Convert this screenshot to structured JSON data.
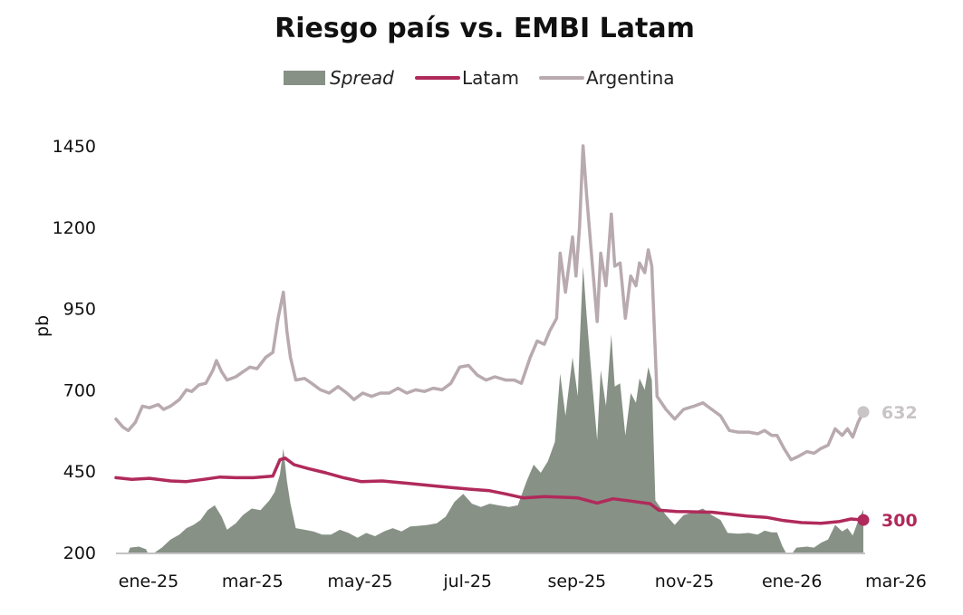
{
  "chart_data": {
    "type": "line",
    "title": "Riesgo país vs. EMBI Latam",
    "ylabel": "pb",
    "xlabel": "",
    "ylim": [
      200,
      1450
    ],
    "yticks": [
      "200",
      "450",
      "700",
      "950",
      "1200",
      "1450"
    ],
    "x_tick_labels": [
      "ene-25",
      "mar-25",
      "may-25",
      "jul-25",
      "sep-25",
      "nov-25",
      "ene-26",
      "mar-26"
    ],
    "x_start": "2025-01-01",
    "x_end": "2026-03-01",
    "legend_position": "top-center",
    "grid": false,
    "legend": [
      {
        "name": "Spread",
        "style": "area",
        "italic": true
      },
      {
        "name": "Latam",
        "style": "line"
      },
      {
        "name": "Argentina",
        "style": "line"
      }
    ],
    "series": [
      {
        "name": "Argentina",
        "type": "line",
        "color": "#b8aaaf",
        "points": [
          [
            "2025-01-01",
            610
          ],
          [
            "2025-01-05",
            585
          ],
          [
            "2025-01-08",
            575
          ],
          [
            "2025-01-12",
            600
          ],
          [
            "2025-01-16",
            650
          ],
          [
            "2025-01-20",
            645
          ],
          [
            "2025-01-25",
            655
          ],
          [
            "2025-01-28",
            640
          ],
          [
            "2025-02-01",
            650
          ],
          [
            "2025-02-06",
            670
          ],
          [
            "2025-02-10",
            700
          ],
          [
            "2025-02-13",
            695
          ],
          [
            "2025-02-17",
            715
          ],
          [
            "2025-02-21",
            720
          ],
          [
            "2025-02-25",
            760
          ],
          [
            "2025-02-27",
            790
          ],
          [
            "2025-03-02",
            755
          ],
          [
            "2025-03-05",
            730
          ],
          [
            "2025-03-10",
            740
          ],
          [
            "2025-03-14",
            755
          ],
          [
            "2025-03-18",
            770
          ],
          [
            "2025-03-22",
            765
          ],
          [
            "2025-03-27",
            800
          ],
          [
            "2025-03-31",
            815
          ],
          [
            "2025-04-03",
            920
          ],
          [
            "2025-04-06",
            1000
          ],
          [
            "2025-04-08",
            880
          ],
          [
            "2025-04-10",
            800
          ],
          [
            "2025-04-13",
            730
          ],
          [
            "2025-04-18",
            735
          ],
          [
            "2025-04-22",
            720
          ],
          [
            "2025-04-27",
            700
          ],
          [
            "2025-05-02",
            690
          ],
          [
            "2025-05-07",
            710
          ],
          [
            "2025-05-12",
            690
          ],
          [
            "2025-05-16",
            670
          ],
          [
            "2025-05-21",
            690
          ],
          [
            "2025-05-26",
            680
          ],
          [
            "2025-05-31",
            690
          ],
          [
            "2025-06-05",
            690
          ],
          [
            "2025-06-10",
            705
          ],
          [
            "2025-06-15",
            690
          ],
          [
            "2025-06-20",
            700
          ],
          [
            "2025-06-25",
            695
          ],
          [
            "2025-06-30",
            705
          ],
          [
            "2025-07-05",
            700
          ],
          [
            "2025-07-10",
            720
          ],
          [
            "2025-07-15",
            770
          ],
          [
            "2025-07-20",
            775
          ],
          [
            "2025-07-25",
            745
          ],
          [
            "2025-07-30",
            730
          ],
          [
            "2025-08-04",
            740
          ],
          [
            "2025-08-10",
            730
          ],
          [
            "2025-08-15",
            730
          ],
          [
            "2025-08-19",
            720
          ],
          [
            "2025-08-24",
            800
          ],
          [
            "2025-08-28",
            850
          ],
          [
            "2025-09-01",
            840
          ],
          [
            "2025-09-04",
            880
          ],
          [
            "2025-09-08",
            920
          ],
          [
            "2025-09-10",
            1120
          ],
          [
            "2025-09-13",
            1000
          ],
          [
            "2025-09-17",
            1170
          ],
          [
            "2025-09-19",
            1050
          ],
          [
            "2025-09-21",
            1200
          ],
          [
            "2025-09-23",
            1450
          ],
          [
            "2025-09-25",
            1300
          ],
          [
            "2025-09-28",
            1100
          ],
          [
            "2025-10-01",
            910
          ],
          [
            "2025-10-03",
            1120
          ],
          [
            "2025-10-06",
            1020
          ],
          [
            "2025-10-09",
            1240
          ],
          [
            "2025-10-11",
            1080
          ],
          [
            "2025-10-14",
            1090
          ],
          [
            "2025-10-17",
            920
          ],
          [
            "2025-10-20",
            1050
          ],
          [
            "2025-10-23",
            1020
          ],
          [
            "2025-10-25",
            1090
          ],
          [
            "2025-10-28",
            1060
          ],
          [
            "2025-10-30",
            1130
          ],
          [
            "2025-11-01",
            1080
          ],
          [
            "2025-11-04",
            680
          ],
          [
            "2025-11-09",
            640
          ],
          [
            "2025-11-14",
            610
          ],
          [
            "2025-11-19",
            640
          ],
          [
            "2025-11-25",
            650
          ],
          [
            "2025-11-30",
            660
          ],
          [
            "2025-12-05",
            640
          ],
          [
            "2025-12-10",
            620
          ],
          [
            "2025-12-15",
            575
          ],
          [
            "2025-12-20",
            570
          ],
          [
            "2025-12-26",
            570
          ],
          [
            "2025-12-31",
            565
          ],
          [
            "2026-01-04",
            575
          ],
          [
            "2026-01-08",
            560
          ],
          [
            "2026-01-11",
            560
          ],
          [
            "2026-01-15",
            520
          ],
          [
            "2026-01-19",
            485
          ],
          [
            "2026-01-23",
            495
          ],
          [
            "2026-01-28",
            510
          ],
          [
            "2026-02-01",
            505
          ],
          [
            "2026-02-05",
            520
          ],
          [
            "2026-02-09",
            530
          ],
          [
            "2026-02-13",
            580
          ],
          [
            "2026-02-17",
            560
          ],
          [
            "2026-02-20",
            580
          ],
          [
            "2026-02-23",
            555
          ],
          [
            "2026-02-26",
            600
          ],
          [
            "2026-03-01",
            632
          ]
        ]
      },
      {
        "name": "Latam",
        "type": "line",
        "color": "#b02a5b",
        "points": [
          [
            "2025-01-01",
            430
          ],
          [
            "2025-01-10",
            425
          ],
          [
            "2025-01-20",
            428
          ],
          [
            "2025-02-01",
            420
          ],
          [
            "2025-02-10",
            418
          ],
          [
            "2025-02-20",
            425
          ],
          [
            "2025-03-01",
            432
          ],
          [
            "2025-03-10",
            430
          ],
          [
            "2025-03-20",
            430
          ],
          [
            "2025-03-31",
            435
          ],
          [
            "2025-04-04",
            485
          ],
          [
            "2025-04-07",
            490
          ],
          [
            "2025-04-12",
            470
          ],
          [
            "2025-04-20",
            458
          ],
          [
            "2025-04-30",
            445
          ],
          [
            "2025-05-10",
            430
          ],
          [
            "2025-05-20",
            418
          ],
          [
            "2025-06-01",
            420
          ],
          [
            "2025-06-15",
            413
          ],
          [
            "2025-06-30",
            405
          ],
          [
            "2025-07-10",
            400
          ],
          [
            "2025-07-20",
            395
          ],
          [
            "2025-08-01",
            390
          ],
          [
            "2025-08-10",
            380
          ],
          [
            "2025-08-20",
            368
          ],
          [
            "2025-09-01",
            372
          ],
          [
            "2025-09-10",
            370
          ],
          [
            "2025-09-20",
            368
          ],
          [
            "2025-10-01",
            352
          ],
          [
            "2025-10-10",
            365
          ],
          [
            "2025-10-20",
            358
          ],
          [
            "2025-10-31",
            350
          ],
          [
            "2025-11-05",
            330
          ],
          [
            "2025-11-15",
            326
          ],
          [
            "2025-11-25",
            325
          ],
          [
            "2025-12-05",
            324
          ],
          [
            "2025-12-15",
            318
          ],
          [
            "2025-12-25",
            312
          ],
          [
            "2026-01-05",
            308
          ],
          [
            "2026-01-15",
            298
          ],
          [
            "2026-01-25",
            292
          ],
          [
            "2026-02-05",
            290
          ],
          [
            "2026-02-15",
            295
          ],
          [
            "2026-02-22",
            303
          ],
          [
            "2026-03-01",
            300
          ]
        ]
      },
      {
        "name": "Spread",
        "type": "area",
        "color": "#879186",
        "points": [
          [
            "2025-01-01",
            200
          ],
          [
            "2025-01-08",
            200
          ],
          [
            "2025-01-09",
            215
          ],
          [
            "2025-01-14",
            218
          ],
          [
            "2025-01-18",
            210
          ],
          [
            "2025-01-19",
            200
          ],
          [
            "2025-01-23",
            200
          ],
          [
            "2025-01-27",
            215
          ],
          [
            "2025-02-01",
            240
          ],
          [
            "2025-02-06",
            255
          ],
          [
            "2025-02-10",
            275
          ],
          [
            "2025-02-14",
            285
          ],
          [
            "2025-02-18",
            300
          ],
          [
            "2025-02-22",
            330
          ],
          [
            "2025-02-26",
            345
          ],
          [
            "2025-03-02",
            310
          ],
          [
            "2025-03-05",
            270
          ],
          [
            "2025-03-10",
            290
          ],
          [
            "2025-03-14",
            315
          ],
          [
            "2025-03-19",
            335
          ],
          [
            "2025-03-24",
            330
          ],
          [
            "2025-03-29",
            360
          ],
          [
            "2025-04-01",
            385
          ],
          [
            "2025-04-04",
            440
          ],
          [
            "2025-04-06",
            520
          ],
          [
            "2025-04-08",
            420
          ],
          [
            "2025-04-10",
            350
          ],
          [
            "2025-04-13",
            275
          ],
          [
            "2025-04-18",
            270
          ],
          [
            "2025-04-23",
            265
          ],
          [
            "2025-04-28",
            255
          ],
          [
            "2025-05-03",
            255
          ],
          [
            "2025-05-08",
            270
          ],
          [
            "2025-05-13",
            260
          ],
          [
            "2025-05-18",
            245
          ],
          [
            "2025-05-23",
            260
          ],
          [
            "2025-05-28",
            250
          ],
          [
            "2025-06-02",
            265
          ],
          [
            "2025-06-07",
            275
          ],
          [
            "2025-06-12",
            265
          ],
          [
            "2025-06-17",
            280
          ],
          [
            "2025-06-22",
            282
          ],
          [
            "2025-06-27",
            285
          ],
          [
            "2025-07-02",
            290
          ],
          [
            "2025-07-07",
            310
          ],
          [
            "2025-07-12",
            355
          ],
          [
            "2025-07-17",
            380
          ],
          [
            "2025-07-22",
            350
          ],
          [
            "2025-07-27",
            340
          ],
          [
            "2025-08-01",
            350
          ],
          [
            "2025-08-06",
            345
          ],
          [
            "2025-08-12",
            340
          ],
          [
            "2025-08-17",
            345
          ],
          [
            "2025-08-22",
            420
          ],
          [
            "2025-08-26",
            470
          ],
          [
            "2025-08-30",
            445
          ],
          [
            "2025-09-03",
            480
          ],
          [
            "2025-09-07",
            540
          ],
          [
            "2025-09-10",
            750
          ],
          [
            "2025-09-13",
            620
          ],
          [
            "2025-09-17",
            800
          ],
          [
            "2025-09-20",
            680
          ],
          [
            "2025-09-21",
            830
          ],
          [
            "2025-09-23",
            1080
          ],
          [
            "2025-09-25",
            930
          ],
          [
            "2025-09-28",
            730
          ],
          [
            "2025-10-01",
            545
          ],
          [
            "2025-10-03",
            760
          ],
          [
            "2025-10-06",
            650
          ],
          [
            "2025-10-09",
            870
          ],
          [
            "2025-10-11",
            710
          ],
          [
            "2025-10-14",
            720
          ],
          [
            "2025-10-17",
            560
          ],
          [
            "2025-10-20",
            690
          ],
          [
            "2025-10-23",
            660
          ],
          [
            "2025-10-25",
            735
          ],
          [
            "2025-10-28",
            700
          ],
          [
            "2025-10-30",
            770
          ],
          [
            "2025-11-01",
            730
          ],
          [
            "2025-11-03",
            360
          ],
          [
            "2025-11-09",
            315
          ],
          [
            "2025-11-14",
            285
          ],
          [
            "2025-11-19",
            315
          ],
          [
            "2025-11-25",
            325
          ],
          [
            "2025-11-30",
            335
          ],
          [
            "2025-12-05",
            315
          ],
          [
            "2025-12-10",
            300
          ],
          [
            "2025-12-14",
            260
          ],
          [
            "2025-12-20",
            258
          ],
          [
            "2025-12-26",
            260
          ],
          [
            "2025-12-31",
            255
          ],
          [
            "2026-01-04",
            267
          ],
          [
            "2026-01-08",
            262
          ],
          [
            "2026-01-11",
            262
          ],
          [
            "2026-01-14",
            220
          ],
          [
            "2026-01-16",
            200
          ],
          [
            "2026-01-20",
            200
          ],
          [
            "2026-01-22",
            215
          ],
          [
            "2026-01-28",
            218
          ],
          [
            "2026-02-01",
            215
          ],
          [
            "2026-02-05",
            230
          ],
          [
            "2026-02-09",
            240
          ],
          [
            "2026-02-13",
            285
          ],
          [
            "2026-02-17",
            265
          ],
          [
            "2026-02-20",
            275
          ],
          [
            "2026-02-23",
            252
          ],
          [
            "2026-02-26",
            297
          ],
          [
            "2026-03-01",
            332
          ]
        ]
      }
    ],
    "end_labels": [
      {
        "series": "Argentina",
        "text": "632",
        "value": 632,
        "color": "#c9c4c6"
      },
      {
        "series": "Latam",
        "text": "300",
        "value": 300,
        "color": "#b02a5b"
      }
    ]
  }
}
